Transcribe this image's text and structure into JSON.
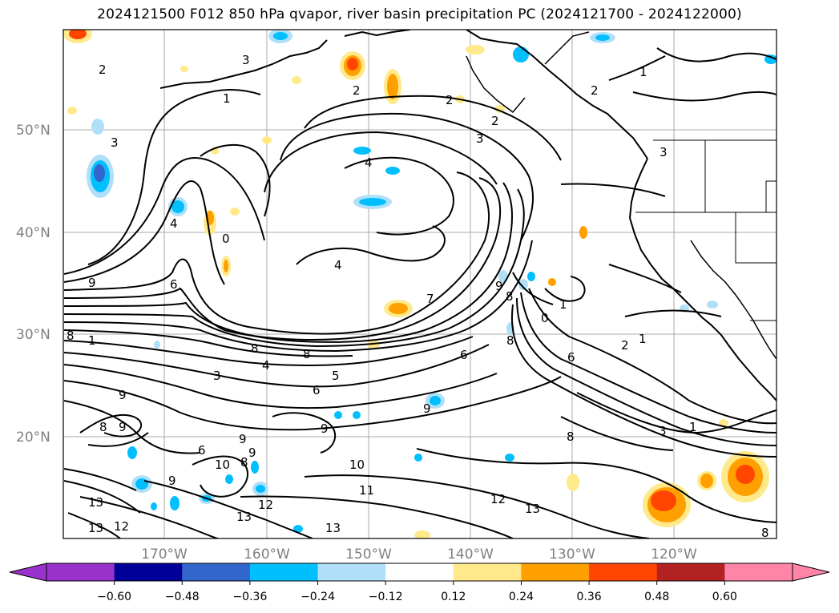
{
  "title": "2024121500 F012 850 hPa qvapor, river basin precipitation PC (2024121700 - 2024122000)",
  "lat_labels": [
    "50°N",
    "40°N",
    "30°N",
    "20°N"
  ],
  "lon_labels": [
    "170°W",
    "160°W",
    "150°W",
    "140°W",
    "130°W",
    "120°W"
  ],
  "colorbar": {
    "ticks": [
      "−0.60",
      "−0.48",
      "−0.36",
      "−0.24",
      "−0.12",
      "0.12",
      "0.24",
      "0.36",
      "0.48",
      "0.60"
    ],
    "colors": [
      "#9933cc",
      "#000099",
      "#3366cc",
      "#00bfff",
      "#b0e0f8",
      "#ffffff",
      "#ffe98a",
      "#ff9f00",
      "#ff4500",
      "#b22222",
      "#ff85a8"
    ]
  },
  "contour_labels": [
    "2",
    "3",
    "1",
    "3",
    "2",
    "2",
    "2",
    "1",
    "2",
    "3",
    "4",
    "3",
    "4",
    "0",
    "4",
    "9",
    "6",
    "8",
    "1",
    "8",
    "8",
    "4",
    "3",
    "5",
    "6",
    "7",
    "6",
    "8",
    "9",
    "8",
    "0",
    "1",
    "6",
    "2",
    "1",
    "8",
    "3",
    "1",
    "9",
    "9",
    "8",
    "9",
    "9",
    "6",
    "10",
    "10",
    "11",
    "8",
    "9",
    "12",
    "13",
    "13",
    "12",
    "13",
    "13",
    "12",
    "13",
    "9",
    "9",
    "8"
  ]
}
